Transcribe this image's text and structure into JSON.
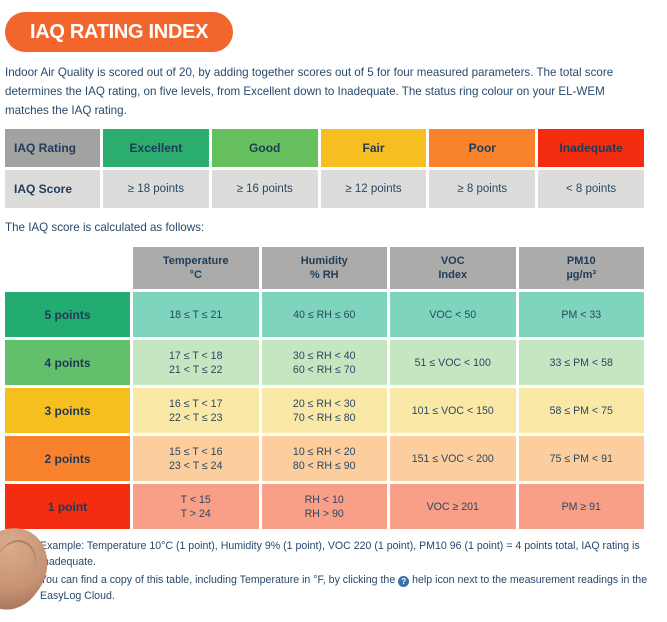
{
  "badge": {
    "title": "IAQ RATING INDEX"
  },
  "intro": {
    "lines": [
      "Indoor Air Quality is scored out of 20, by adding together scores out of 5 for four measured parameters. The total score",
      "determines the IAQ rating, on five levels, from Excellent down to Inadequate. The status ring colour on your EL-WEM",
      "matches the IAQ rating."
    ]
  },
  "rating_table": {
    "row1_label": "IAQ Rating",
    "row2_label": "IAQ Score",
    "columns": [
      {
        "rating": "Excellent",
        "score": "≥ 18 points",
        "color": "#2aad6f"
      },
      {
        "rating": "Good",
        "score": "≥ 16 points",
        "color": "#67c05e"
      },
      {
        "rating": "Fair",
        "score": "≥ 12 points",
        "color": "#f6be20"
      },
      {
        "rating": "Poor",
        "score": "≥ 8 points",
        "color": "#f8832c"
      },
      {
        "rating": "Inadequate",
        "score": "< 8 points",
        "color": "#f42d10"
      }
    ]
  },
  "calc_intro": "The IAQ score is calculated as follows:",
  "score_table": {
    "headers": [
      {
        "line1": "Temperature",
        "line2": "°C"
      },
      {
        "line1": "Humidity",
        "line2": "% RH"
      },
      {
        "line1": "VOC",
        "line2": "Index"
      },
      {
        "line1": "PM10",
        "line2": "µg/m³"
      }
    ],
    "rows": [
      {
        "label": "5 points",
        "label_color": "#23ac72",
        "data_color": "#7ed4bd",
        "cells": [
          [
            "18 ≤ T ≤ 21"
          ],
          [
            "40 ≤ RH ≤ 60"
          ],
          [
            "VOC < 50"
          ],
          [
            "PM < 33"
          ]
        ]
      },
      {
        "label": "4 points",
        "label_color": "#62bf6b",
        "data_color": "#c4e6c1",
        "cells": [
          [
            "17 ≤ T < 18",
            "21 < T ≤ 22"
          ],
          [
            "30 ≤ RH < 40",
            "60 < RH ≤ 70"
          ],
          [
            "51 ≤ VOC < 100"
          ],
          [
            "33 ≤ PM < 58"
          ]
        ]
      },
      {
        "label": "3 points",
        "label_color": "#f7bf1e",
        "data_color": "#fae9a6",
        "cells": [
          [
            "16 ≤ T < 17",
            "22 < T ≤ 23"
          ],
          [
            "20 ≤ RH < 30",
            "70 < RH ≤ 80"
          ],
          [
            "101 ≤ VOC < 150"
          ],
          [
            "58 ≤ PM < 75"
          ]
        ]
      },
      {
        "label": "2 points",
        "label_color": "#f8822c",
        "data_color": "#fccd9d",
        "cells": [
          [
            "15 ≤ T < 16",
            "23 < T ≤ 24"
          ],
          [
            "10 ≤ RH < 20",
            "80 < RH ≤ 90"
          ],
          [
            "151 ≤ VOC < 200"
          ],
          [
            "75 ≤ PM < 91"
          ]
        ]
      },
      {
        "label": "1 point",
        "label_color": "#f42d10",
        "data_color": "#f99e87",
        "cells": [
          [
            "T < 15",
            "T > 24"
          ],
          [
            "RH < 10",
            "RH > 90"
          ],
          [
            "VOC ≥ 201"
          ],
          [
            "PM ≥ 91"
          ]
        ]
      }
    ]
  },
  "footer": {
    "bullet_glyph": "•",
    "example": "Example: Temperature 10°C (1 point), Humidity 9% (1 point), VOC 220 (1 point), PM10 96 (1 point) = 4 points total, IAQ rating is Inadequate.",
    "help_pre": "You can find a copy of this table, including Temperature in °F, by clicking the ",
    "help_icon_glyph": "?",
    "help_post": " help icon next to the measurement readings in the EasyLog Cloud."
  },
  "colors": {
    "badge_orange": "#f2662e",
    "text_navy": "#28496c",
    "grey_dark": "#a2a2a0",
    "grey_light": "#dcdcda",
    "grey_header": "#ababa9",
    "help_blue": "#3873ae"
  }
}
